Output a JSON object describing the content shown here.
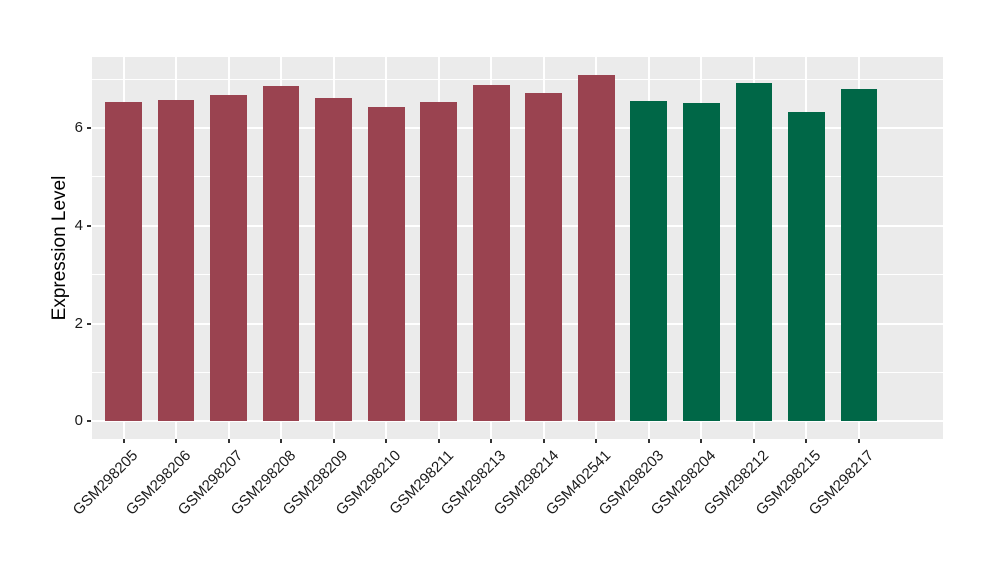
{
  "chart_data": {
    "type": "bar",
    "title": "",
    "xlabel": "",
    "ylabel": "Expression Level",
    "categories": [
      "GSM298205",
      "GSM298206",
      "GSM298207",
      "GSM298208",
      "GSM298209",
      "GSM298210",
      "GSM298211",
      "GSM298213",
      "GSM298214",
      "GSM402541",
      "GSM298203",
      "GSM298204",
      "GSM298212",
      "GSM298215",
      "GSM298217"
    ],
    "values": [
      6.53,
      6.57,
      6.68,
      6.85,
      6.61,
      6.42,
      6.53,
      6.88,
      6.72,
      7.09,
      6.56,
      6.51,
      6.92,
      6.33,
      6.79
    ],
    "colors": [
      "#9A4350",
      "#9A4350",
      "#9A4350",
      "#9A4350",
      "#9A4350",
      "#9A4350",
      "#9A4350",
      "#9A4350",
      "#9A4350",
      "#9A4350",
      "#006747",
      "#006747",
      "#006747",
      "#006747",
      "#006747"
    ],
    "group_colors": {
      "maroon": "#9A4350",
      "green": "#006747"
    },
    "yticks": [
      0,
      2,
      4,
      6
    ],
    "minor_yticks": [
      1,
      3,
      5,
      7
    ],
    "ylim": [
      -0.36,
      7.45
    ],
    "bar_width_fraction": 0.7,
    "x_tick_rotation_deg": 45,
    "grid": true,
    "legend": "none",
    "panel_background": "#EBEBEB",
    "grid_color": "#FFFFFF",
    "figure_background": "#FFFFFF"
  }
}
